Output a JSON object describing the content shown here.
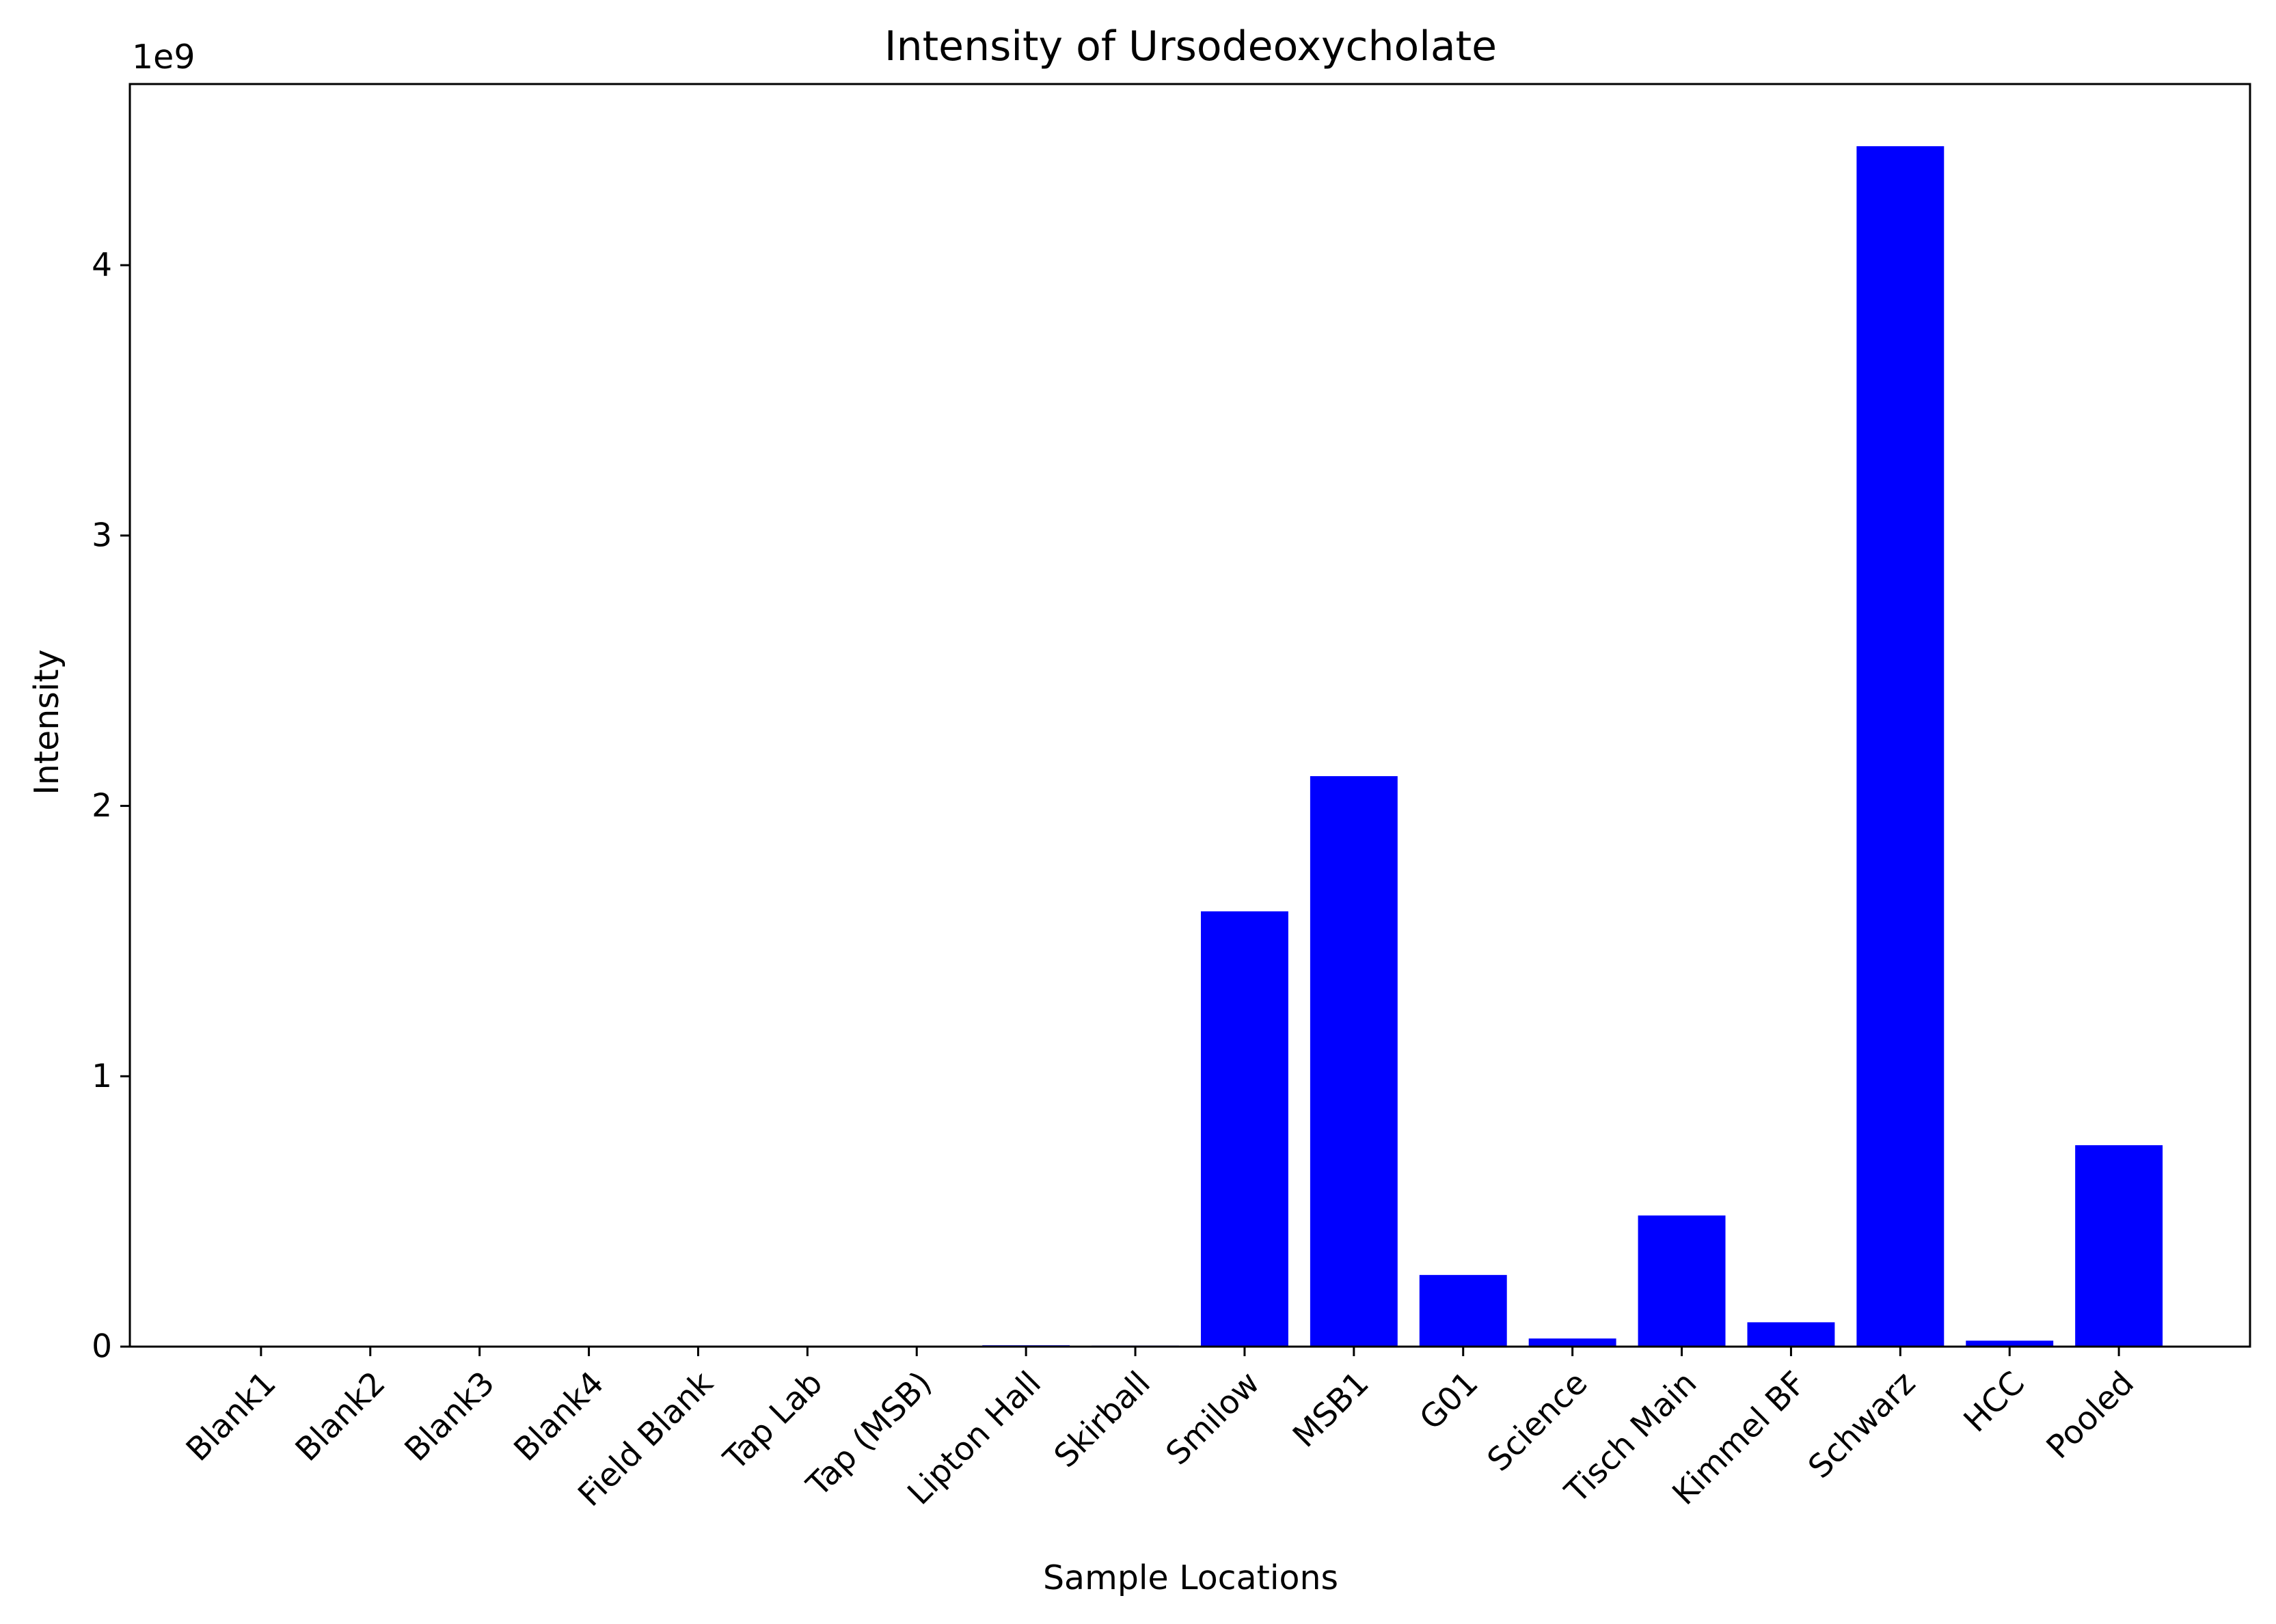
{
  "chart_data": {
    "type": "bar",
    "title": "Intensity of Ursodeoxycholate",
    "xlabel": "Sample Locations",
    "ylabel": "Intensity",
    "y_offset_label": "1e9",
    "y_multiplier": 1000000000,
    "ylim": [
      0,
      4.67
    ],
    "yticks": [
      0,
      1,
      2,
      3,
      4
    ],
    "grid": false,
    "legend": "none",
    "bar_color": "#0000ff",
    "categories": [
      "Blank1",
      "Blank2",
      "Blank3",
      "Blank4",
      "Field Blank",
      "Tap Lab",
      "Tap (MSB)",
      "Lipton Hall",
      "Skirball",
      "Smilow",
      "MSB1",
      "G01",
      "Science",
      "Tisch Main",
      "Kimmel BF",
      "Schwarz",
      "HCC",
      "Pooled"
    ],
    "values": [
      0.0,
      0.0,
      0.0,
      0.0,
      0.0,
      0.0,
      0.0,
      0.005,
      0.004,
      1.61,
      2.11,
      0.265,
      0.03,
      0.485,
      0.09,
      4.44,
      0.022,
      0.745
    ]
  }
}
